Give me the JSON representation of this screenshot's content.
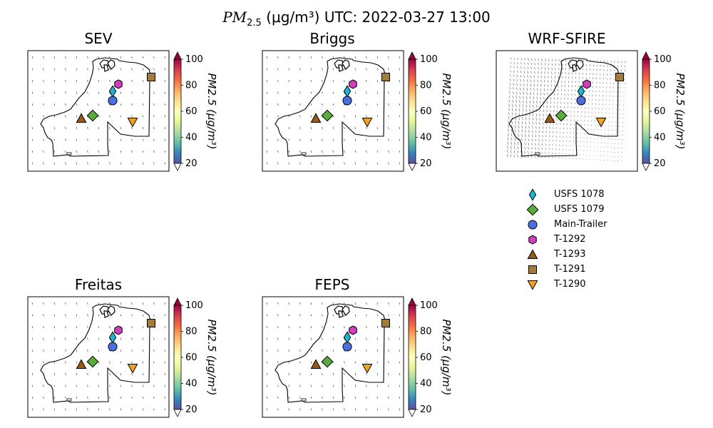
{
  "figure_title_prefix": "PM",
  "figure_title_sub": "2.5",
  "figure_title_units": "(μg/m³)",
  "figure_title_time": "UTC: 2022-03-27 13:00",
  "colorbar": {
    "label": "PM2.5 (μg/m³)",
    "ticks": [
      "20",
      "40",
      "60",
      "80",
      "100"
    ]
  },
  "panels": [
    {
      "title": "SEV",
      "wind": "sparse"
    },
    {
      "title": "Briggs",
      "wind": "sparse"
    },
    {
      "title": "WRF-SFIRE",
      "wind": "dense"
    },
    {
      "title": "Freitas",
      "wind": "sparse"
    },
    {
      "title": "FEPS",
      "wind": "sparse"
    }
  ],
  "stations": [
    {
      "name": "USFS 1078",
      "marker": "thin-diamond",
      "color": "#1fb3d4"
    },
    {
      "name": "USFS 1079",
      "marker": "diamond",
      "color": "#5aad3b"
    },
    {
      "name": "Main-Trailer",
      "marker": "circle",
      "color": "#4a6fe0"
    },
    {
      "name": "T-1292",
      "marker": "hexagon",
      "color": "#d13fbf"
    },
    {
      "name": "T-1293",
      "marker": "triangle-up",
      "color": "#9a5a13"
    },
    {
      "name": "T-1291",
      "marker": "square",
      "color": "#a37d36"
    },
    {
      "name": "T-1290",
      "marker": "triangle-down",
      "color": "#f2a120"
    }
  ],
  "colormap": [
    "#5e4fa2",
    "#3288bd",
    "#66c2a5",
    "#abdda4",
    "#e6f598",
    "#ffffbf",
    "#fee08b",
    "#fdae61",
    "#f46d43",
    "#d53e4f",
    "#9e0142"
  ]
}
